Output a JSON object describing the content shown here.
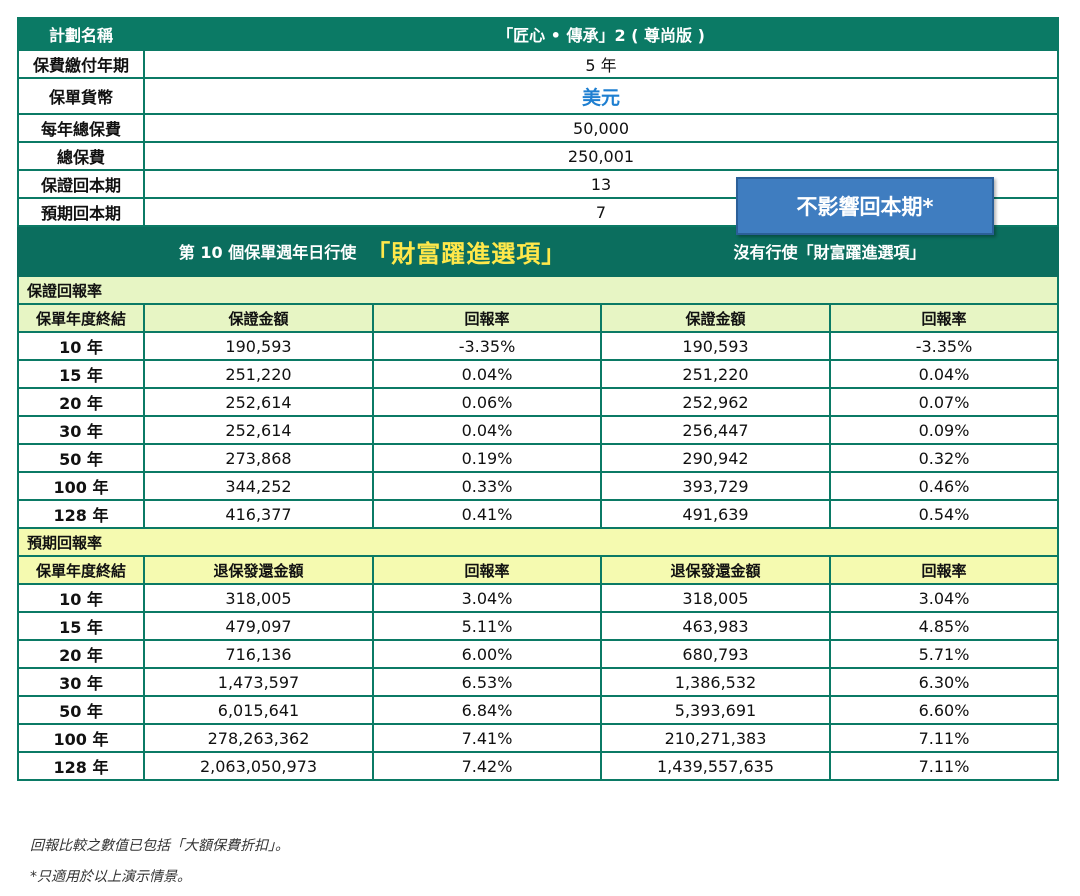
{
  "summary": {
    "plan_label": "計劃名稱",
    "plan_value": "「匠心 • 傳承」2 ( 尊尚版 )",
    "payment_term_label": "保費繳付年期",
    "payment_term_value": "5 年",
    "currency_label": "保單貨幣",
    "currency_value": "美元",
    "annual_premium_label": "每年總保費",
    "annual_premium_value": "50,000",
    "total_premium_label": "總保費",
    "total_premium_value": "250,001",
    "guaranteed_breakeven_label": "保證回本期",
    "guaranteed_breakeven_value": "13",
    "expected_breakeven_label": "預期回本期",
    "expected_breakeven_value": "7"
  },
  "callout": {
    "text": "不影響回本期*"
  },
  "banner": {
    "left_prefix": "第 10 個保單週年日行使",
    "left_highlight": "「財富躍進選項」",
    "right": "沒有行使「財富躍進選項」"
  },
  "guaranteed": {
    "section_title": "保證回報率",
    "headers": [
      "保單年度終結",
      "保證金額",
      "回報率",
      "保證金額",
      "回報率"
    ],
    "rows": [
      [
        "10 年",
        "190,593",
        "-3.35%",
        "190,593",
        "-3.35%"
      ],
      [
        "15 年",
        "251,220",
        "0.04%",
        "251,220",
        "0.04%"
      ],
      [
        "20 年",
        "252,614",
        "0.06%",
        "252,962",
        "0.07%"
      ],
      [
        "30 年",
        "252,614",
        "0.04%",
        "256,447",
        "0.09%"
      ],
      [
        "50 年",
        "273,868",
        "0.19%",
        "290,942",
        "0.32%"
      ],
      [
        "100 年",
        "344,252",
        "0.33%",
        "393,729",
        "0.46%"
      ],
      [
        "128 年",
        "416,377",
        "0.41%",
        "491,639",
        "0.54%"
      ]
    ]
  },
  "expected": {
    "section_title": "預期回報率",
    "headers": [
      "保單年度終結",
      "退保發還金額",
      "回報率",
      "退保發還金額",
      "回報率"
    ],
    "rows": [
      [
        "10 年",
        "318,005",
        "3.04%",
        "318,005",
        "3.04%"
      ],
      [
        "15 年",
        "479,097",
        "5.11%",
        "463,983",
        "4.85%"
      ],
      [
        "20 年",
        "716,136",
        "6.00%",
        "680,793",
        "5.71%"
      ],
      [
        "30 年",
        "1,473,597",
        "6.53%",
        "1,386,532",
        "6.30%"
      ],
      [
        "50 年",
        "6,015,641",
        "6.84%",
        "5,393,691",
        "6.60%"
      ],
      [
        "100 年",
        "278,263,362",
        "7.41%",
        "210,271,383",
        "7.11%"
      ],
      [
        "128 年",
        "2,063,050,973",
        "7.42%",
        "1,439,557,635",
        "7.11%"
      ]
    ]
  },
  "notes": {
    "note1": "回報比較之數值已包括「大額保費折扣」。",
    "note2": "*只適用於以上演示情景。"
  }
}
